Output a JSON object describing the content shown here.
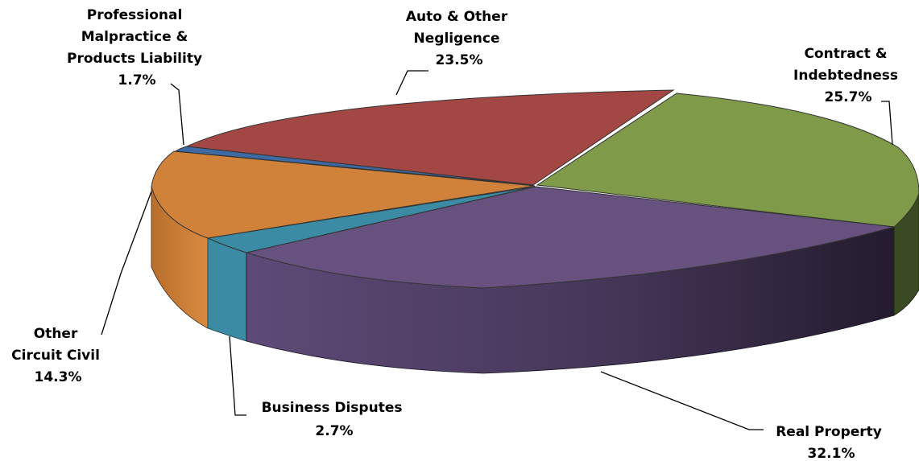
{
  "chart_data": {
    "type": "pie",
    "title": "",
    "slices": [
      {
        "name": "Contract & Indebtedness",
        "lines": [
          "Contract &",
          "Indebtedness"
        ],
        "value": 25.7,
        "display": "25.7%",
        "color": "#7F9A48"
      },
      {
        "name": "Real Property",
        "lines": [
          "Real Property"
        ],
        "value": 32.1,
        "display": "32.1%",
        "color": "#66517F"
      },
      {
        "name": "Business Disputes",
        "lines": [
          "Business Disputes"
        ],
        "value": 2.7,
        "display": "2.7%",
        "color": "#3A8BA3"
      },
      {
        "name": "Other Circuit Civil",
        "lines": [
          "Other",
          "Circuit Civil"
        ],
        "value": 14.3,
        "display": "14.3%",
        "color": "#D0823A"
      },
      {
        "name": "Professional Malpractice & Products Liability",
        "lines": [
          "Professional",
          "Malpractice &",
          "Products Liability"
        ],
        "value": 1.7,
        "display": "1.7%",
        "color": "#3E6AA3"
      },
      {
        "name": "Auto & Other Negligence",
        "lines": [
          "Auto & Other",
          "Negligence"
        ],
        "value": 23.5,
        "display": "23.5%",
        "color": "#A34744"
      }
    ],
    "legend": "none",
    "style": "3d-exploded-perspective"
  }
}
